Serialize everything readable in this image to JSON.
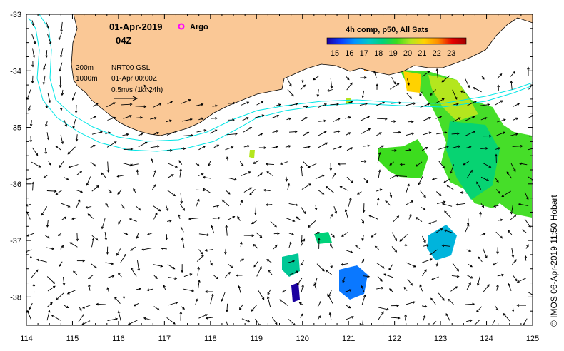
{
  "map": {
    "date": "01-Apr-2019",
    "hour": "04Z",
    "argo_label": "Argo",
    "legend_lines": [
      {
        "depth": "200m",
        "text": "NRT00 GSL"
      },
      {
        "depth": "1000m",
        "text": "01-Apr 00:00Z"
      },
      {
        "depth": "",
        "text": "0.5m/s (1kt 24h)"
      }
    ],
    "colorbar": {
      "title": "4h comp, p50, All Sats",
      "ticks": [
        "15",
        "16",
        "17",
        "18",
        "19",
        "20",
        "21",
        "22",
        "23"
      ],
      "colors": [
        "#1a00a0",
        "#0a3cff",
        "#0096ff",
        "#00c8c8",
        "#00d27a",
        "#3cdc1e",
        "#b4e61e",
        "#ffd200",
        "#ff8c00",
        "#e60000",
        "#a00000"
      ]
    },
    "credit": "© IMOS 06-Apr-2019 11:50 Hobart",
    "x_ticks": [
      "114",
      "115",
      "116",
      "117",
      "118",
      "119",
      "120",
      "121",
      "122",
      "123",
      "124",
      "125"
    ],
    "y_ticks": [
      "-33",
      "-34",
      "-35",
      "-36",
      "-37",
      "-38"
    ],
    "lon_range": [
      114,
      125
    ],
    "lat_range": [
      -38.5,
      -33
    ],
    "colors": {
      "land": "#fac896",
      "isobath": "#00e6e6",
      "argo": "#ff00ff"
    }
  }
}
